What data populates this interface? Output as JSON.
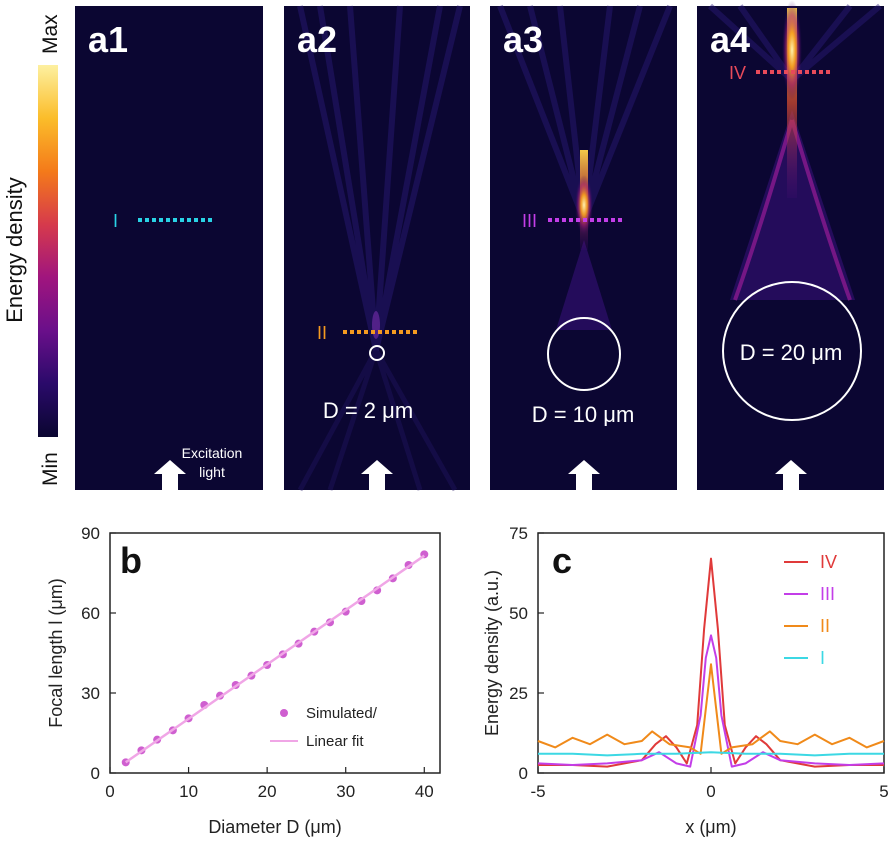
{
  "colorbar": {
    "title": "Energy density",
    "max_label": "Max",
    "min_label": "Min",
    "stops": [
      "#0a0630",
      "#2a0a6a",
      "#6a0f8a",
      "#a0157e",
      "#d63a4c",
      "#f47a1a",
      "#fbbd2a",
      "#fdf0a0"
    ]
  },
  "panels": [
    {
      "label": "a1",
      "marker": "I",
      "marker_color": "#29d3e6",
      "diameter_text": "",
      "annotation": "Excitation light",
      "annotation_lines": [
        "Excitation",
        "light"
      ]
    },
    {
      "label": "a2",
      "marker": "II",
      "marker_color": "#f59a20",
      "diameter_text": "D = 2 μm",
      "diameter_um": 2
    },
    {
      "label": "a3",
      "marker": "III",
      "marker_color": "#c33ee8",
      "diameter_text": "D = 10 μm",
      "diameter_um": 10
    },
    {
      "label": "a4",
      "marker": "IV",
      "marker_color": "#e84a5a",
      "diameter_text": "D = 20 μm",
      "diameter_um": 20
    }
  ],
  "chart_data": [
    {
      "panel": "b",
      "type": "scatter",
      "title": "",
      "xlabel": "Diameter D (μm)",
      "ylabel": "Focal length l (μm)",
      "xlim": [
        0,
        42
      ],
      "ylim": [
        0,
        90
      ],
      "xticks": [
        0,
        10,
        20,
        30,
        40
      ],
      "yticks": [
        0,
        30,
        60,
        90
      ],
      "legend_position": "bottom-right",
      "series": [
        {
          "name": "Simulated/",
          "style": "markers",
          "color": "#cf5fd0",
          "x": [
            2,
            4,
            6,
            8,
            10,
            12,
            14,
            16,
            18,
            20,
            22,
            24,
            26,
            28,
            30,
            32,
            34,
            36,
            38,
            40
          ],
          "y": [
            4,
            8.5,
            12.5,
            16,
            20.5,
            25.5,
            29,
            33,
            36.5,
            40.5,
            44.5,
            48.5,
            53,
            56.5,
            60.5,
            64.5,
            68.5,
            73,
            78,
            82
          ]
        },
        {
          "name": "Linear fit",
          "style": "line",
          "color": "#f0a6e6",
          "x": [
            2,
            40
          ],
          "y": [
            4,
            81.5
          ]
        }
      ]
    },
    {
      "panel": "c",
      "type": "line",
      "title": "",
      "xlabel": "x (μm)",
      "ylabel": "Energy density (a.u.)",
      "xlim": [
        -5,
        5
      ],
      "ylim": [
        0,
        75
      ],
      "xticks": [
        -5,
        0,
        5
      ],
      "yticks": [
        0,
        25,
        50,
        75
      ],
      "legend_position": "top-right",
      "series": [
        {
          "name": "IV",
          "color": "#e03a3a",
          "x": [
            -5,
            -4,
            -3,
            -2,
            -1.6,
            -1.3,
            -1,
            -0.7,
            -0.4,
            -0.2,
            0,
            0.2,
            0.4,
            0.7,
            1,
            1.3,
            1.6,
            2,
            3,
            4,
            5
          ],
          "y": [
            2.5,
            2.5,
            2,
            4,
            9,
            11.5,
            8,
            3,
            15,
            45,
            67,
            45,
            15,
            3,
            8,
            11.5,
            9,
            4,
            2,
            2.5,
            2.5
          ]
        },
        {
          "name": "III",
          "color": "#c33ee8",
          "x": [
            -5,
            -4,
            -3,
            -2,
            -1.5,
            -1,
            -0.6,
            -0.3,
            -0.15,
            0,
            0.15,
            0.3,
            0.6,
            1,
            1.5,
            2,
            3,
            4,
            5
          ],
          "y": [
            3,
            2.5,
            3,
            4,
            6.5,
            3,
            2,
            18,
            36,
            43,
            36,
            18,
            2,
            3,
            6.5,
            4,
            3,
            2.5,
            3
          ]
        },
        {
          "name": "II",
          "color": "#f08a1a",
          "x": [
            -5,
            -4.5,
            -4,
            -3.5,
            -3,
            -2.5,
            -2,
            -1.7,
            -1.2,
            -0.6,
            -0.3,
            -0.15,
            0,
            0.15,
            0.3,
            0.6,
            1.2,
            1.7,
            2,
            2.5,
            3,
            3.5,
            4,
            4.5,
            5
          ],
          "y": [
            10,
            8,
            11,
            9,
            12,
            9,
            10,
            13,
            9,
            8,
            6,
            20,
            34,
            20,
            6,
            8,
            9,
            13,
            10,
            9,
            12,
            9,
            11,
            8,
            10
          ]
        },
        {
          "name": "I",
          "color": "#3cd8e4",
          "x": [
            -5,
            -4,
            -3,
            -2,
            -1,
            0,
            1,
            2,
            3,
            4,
            5
          ],
          "y": [
            6,
            6,
            5.5,
            6,
            6,
            6.5,
            6,
            6,
            5.5,
            6,
            6
          ]
        }
      ]
    }
  ]
}
